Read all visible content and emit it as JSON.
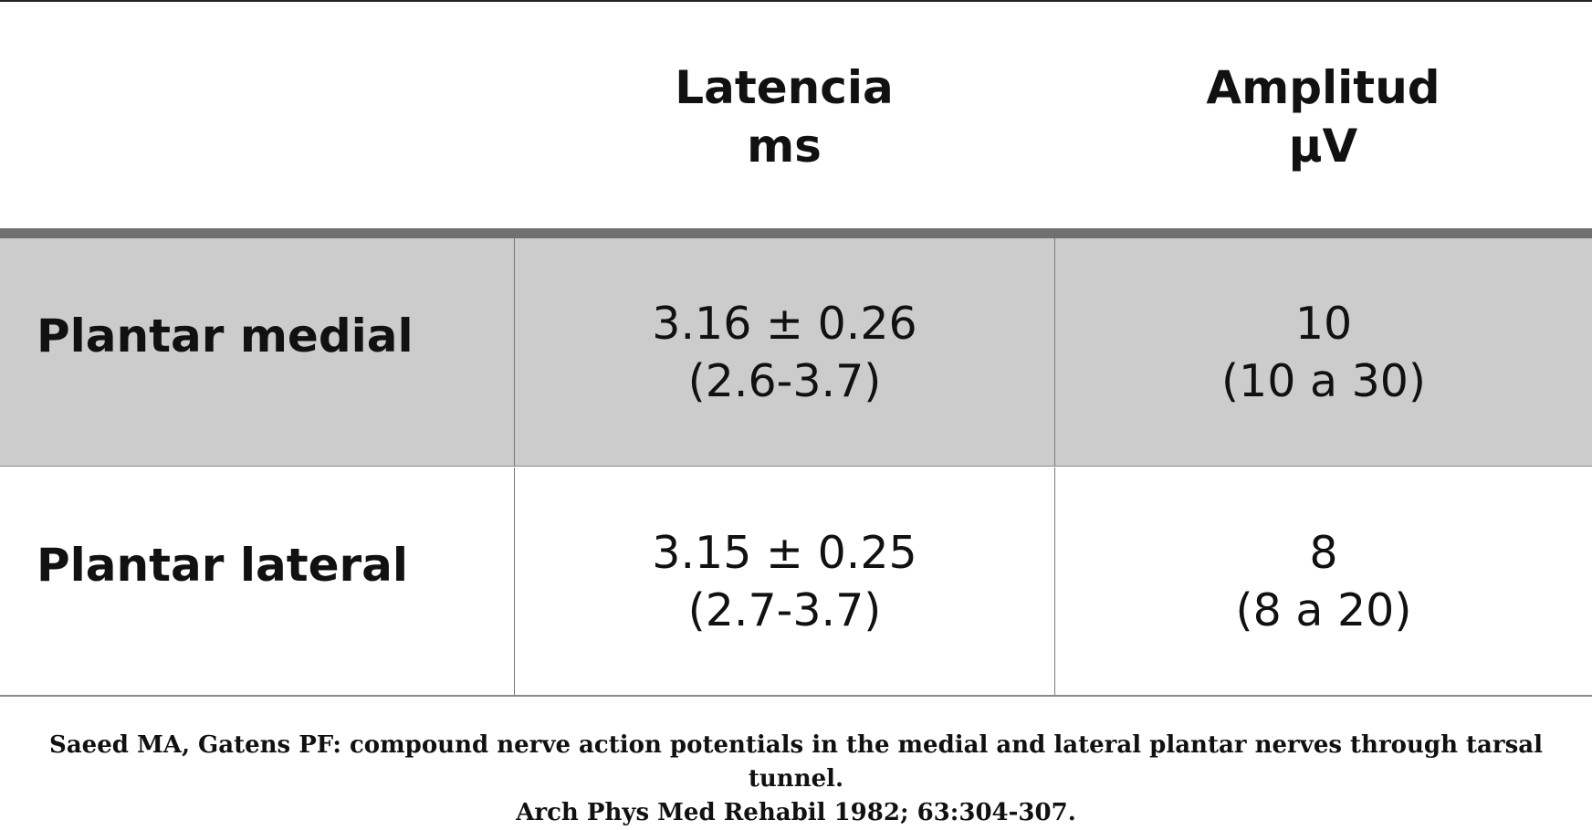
{
  "table": {
    "headers": [
      {
        "line1": "Latencia",
        "line2": "ms"
      },
      {
        "line1": "Amplitud",
        "line2": "µV"
      }
    ],
    "rows": [
      {
        "name": "Plantar medial",
        "latency": {
          "mean": "3.16 ± 0.26",
          "range": "(2.6-3.7)"
        },
        "amplitude": {
          "mean": "10",
          "range": "(10 a 30)"
        }
      },
      {
        "name": "Plantar lateral",
        "latency": {
          "mean": "3.15 ± 0.25",
          "range": "(2.7-3.7)"
        },
        "amplitude": {
          "mean": "8",
          "range": "(8 a 20)"
        }
      }
    ]
  },
  "citation": {
    "line1": "Saeed MA, Gatens PF: compound nerve action potentials in the medial and lateral plantar nerves through tarsal tunnel.",
    "line2": "Arch Phys Med Rehabil 1982; 63:304-307."
  },
  "colors": {
    "shaded_row": "#cccccc",
    "header_rule": "#707070"
  }
}
